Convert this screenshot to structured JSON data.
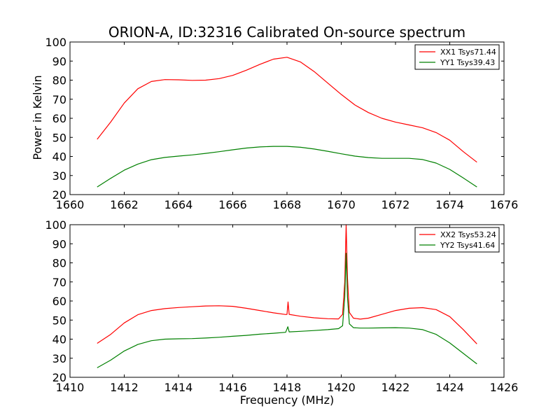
{
  "figure": {
    "title": "ORION-A, ID:32316 Calibrated On-source spectrum",
    "ylabel": "Power in Kelvin",
    "xlabel": "Frequency (MHz)"
  },
  "chart_data": [
    {
      "type": "line",
      "title": "ORION-A, ID:32316 Calibrated On-source spectrum",
      "xlabel": "",
      "ylabel": "Power in Kelvin",
      "xlim": [
        1660,
        1676
      ],
      "ylim": [
        20,
        100
      ],
      "xticks": [
        "1660",
        "1662",
        "1664",
        "1666",
        "1668",
        "1670",
        "1672",
        "1674",
        "1676"
      ],
      "yticks": [
        "20",
        "30",
        "40",
        "50",
        "60",
        "70",
        "80",
        "90",
        "100"
      ],
      "grid": false,
      "legend_position": "top-right",
      "series": [
        {
          "name": "XX1 Tsys71.44",
          "color": "#ff0000",
          "points": [
            [
              1661.0,
              49
            ],
            [
              1661.5,
              58
            ],
            [
              1662.0,
              68
            ],
            [
              1662.5,
              75.5
            ],
            [
              1663.0,
              79.3
            ],
            [
              1663.5,
              80.3
            ],
            [
              1664.0,
              80.2
            ],
            [
              1664.5,
              79.9
            ],
            [
              1665.0,
              80.0
            ],
            [
              1665.5,
              80.8
            ],
            [
              1666.0,
              82.5
            ],
            [
              1666.5,
              85.2
            ],
            [
              1667.0,
              88.3
            ],
            [
              1667.5,
              91.0
            ],
            [
              1668.0,
              92.0
            ],
            [
              1668.5,
              89.5
            ],
            [
              1669.0,
              84.5
            ],
            [
              1669.5,
              78.5
            ],
            [
              1670.0,
              72.5
            ],
            [
              1670.5,
              67.0
            ],
            [
              1671.0,
              63.0
            ],
            [
              1671.5,
              60.0
            ],
            [
              1672.0,
              58.0
            ],
            [
              1672.5,
              56.5
            ],
            [
              1673.0,
              55.0
            ],
            [
              1673.5,
              52.5
            ],
            [
              1674.0,
              48.5
            ],
            [
              1674.5,
              42.5
            ],
            [
              1675.0,
              37.0
            ]
          ]
        },
        {
          "name": "YY1 Tsys39.43",
          "color": "#008000",
          "points": [
            [
              1661.0,
              24
            ],
            [
              1661.5,
              28.5
            ],
            [
              1662.0,
              32.8
            ],
            [
              1662.5,
              36.0
            ],
            [
              1663.0,
              38.3
            ],
            [
              1663.5,
              39.5
            ],
            [
              1664.0,
              40.2
            ],
            [
              1664.5,
              40.8
            ],
            [
              1665.0,
              41.6
            ],
            [
              1665.5,
              42.5
            ],
            [
              1666.0,
              43.5
            ],
            [
              1666.5,
              44.4
            ],
            [
              1667.0,
              45.0
            ],
            [
              1667.5,
              45.3
            ],
            [
              1668.0,
              45.3
            ],
            [
              1668.5,
              44.8
            ],
            [
              1669.0,
              43.9
            ],
            [
              1669.5,
              42.7
            ],
            [
              1670.0,
              41.4
            ],
            [
              1670.5,
              40.2
            ],
            [
              1671.0,
              39.4
            ],
            [
              1671.5,
              39.0
            ],
            [
              1672.0,
              39.0
            ],
            [
              1672.5,
              39.0
            ],
            [
              1673.0,
              38.4
            ],
            [
              1673.5,
              36.5
            ],
            [
              1674.0,
              33.2
            ],
            [
              1674.5,
              28.7
            ],
            [
              1675.0,
              24.0
            ]
          ]
        }
      ]
    },
    {
      "type": "line",
      "title": "",
      "xlabel": "Frequency (MHz)",
      "ylabel": "",
      "xlim": [
        1410,
        1426
      ],
      "ylim": [
        20,
        100
      ],
      "xticks": [
        "1410",
        "1412",
        "1414",
        "1416",
        "1418",
        "1420",
        "1422",
        "1424",
        "1426"
      ],
      "yticks": [
        "20",
        "30",
        "40",
        "50",
        "60",
        "70",
        "80",
        "90",
        "100"
      ],
      "grid": false,
      "legend_position": "top-right",
      "series": [
        {
          "name": "XX2 Tsys53.24",
          "color": "#ff0000",
          "points": [
            [
              1411.0,
              37.8
            ],
            [
              1411.5,
              42.5
            ],
            [
              1412.0,
              48.5
            ],
            [
              1412.5,
              52.8
            ],
            [
              1413.0,
              55.0
            ],
            [
              1413.5,
              56.0
            ],
            [
              1414.0,
              56.6
            ],
            [
              1414.5,
              57.0
            ],
            [
              1415.0,
              57.4
            ],
            [
              1415.5,
              57.5
            ],
            [
              1416.0,
              57.2
            ],
            [
              1416.5,
              56.2
            ],
            [
              1417.0,
              55.0
            ],
            [
              1417.5,
              53.8
            ],
            [
              1417.95,
              52.9
            ],
            [
              1418.0,
              53.0
            ],
            [
              1418.04,
              59.5
            ],
            [
              1418.08,
              53.0
            ],
            [
              1418.5,
              52.0
            ],
            [
              1419.0,
              51.2
            ],
            [
              1419.5,
              50.7
            ],
            [
              1419.9,
              50.6
            ],
            [
              1420.05,
              53.0
            ],
            [
              1420.13,
              70.0
            ],
            [
              1420.18,
              100.0
            ],
            [
              1420.23,
              72.0
            ],
            [
              1420.3,
              54.0
            ],
            [
              1420.45,
              51.0
            ],
            [
              1420.7,
              50.5
            ],
            [
              1421.0,
              51.0
            ],
            [
              1421.5,
              53.0
            ],
            [
              1422.0,
              55.0
            ],
            [
              1422.5,
              56.2
            ],
            [
              1423.0,
              56.5
            ],
            [
              1423.5,
              55.5
            ],
            [
              1424.0,
              51.8
            ],
            [
              1424.5,
              45.0
            ],
            [
              1425.0,
              37.5
            ]
          ]
        },
        {
          "name": "YY2 Tsys41.64",
          "color": "#008000",
          "points": [
            [
              1411.0,
              25.0
            ],
            [
              1411.5,
              29.0
            ],
            [
              1412.0,
              33.8
            ],
            [
              1412.5,
              37.2
            ],
            [
              1413.0,
              39.2
            ],
            [
              1413.5,
              40.0
            ],
            [
              1414.0,
              40.2
            ],
            [
              1414.5,
              40.3
            ],
            [
              1415.0,
              40.6
            ],
            [
              1415.5,
              41.0
            ],
            [
              1416.0,
              41.5
            ],
            [
              1416.5,
              42.0
            ],
            [
              1417.0,
              42.6
            ],
            [
              1417.5,
              43.1
            ],
            [
              1417.95,
              43.6
            ],
            [
              1418.03,
              46.5
            ],
            [
              1418.08,
              43.8
            ],
            [
              1418.5,
              44.1
            ],
            [
              1419.0,
              44.5
            ],
            [
              1419.5,
              45.0
            ],
            [
              1419.9,
              45.5
            ],
            [
              1420.05,
              47.0
            ],
            [
              1420.13,
              62.0
            ],
            [
              1420.18,
              85.0
            ],
            [
              1420.23,
              62.0
            ],
            [
              1420.3,
              48.0
            ],
            [
              1420.45,
              46.0
            ],
            [
              1420.7,
              45.8
            ],
            [
              1421.0,
              45.8
            ],
            [
              1421.5,
              45.9
            ],
            [
              1422.0,
              46.0
            ],
            [
              1422.5,
              45.8
            ],
            [
              1423.0,
              45.0
            ],
            [
              1423.5,
              42.5
            ],
            [
              1424.0,
              38.0
            ],
            [
              1424.5,
              32.5
            ],
            [
              1425.0,
              27.0
            ]
          ]
        }
      ]
    }
  ]
}
